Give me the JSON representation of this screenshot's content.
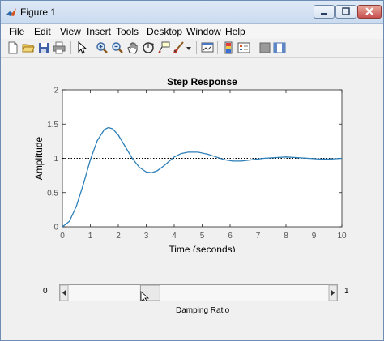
{
  "window": {
    "title": "Figure 1"
  },
  "menu": [
    "File",
    "Edit",
    "View",
    "Insert",
    "Tools",
    "Desktop",
    "Window",
    "Help"
  ],
  "toolbar_icons": [
    "new-figure-icon",
    "open-file-icon",
    "save-icon",
    "print-icon",
    "pointer-icon",
    "zoom-in-icon",
    "zoom-out-icon",
    "pan-hand-icon",
    "rotate-3d-icon",
    "data-cursor-icon",
    "brush-icon",
    "brush-dropdown-icon",
    "link-plot-icon",
    "colorbar-icon",
    "legend-icon",
    "hide-plot-tools-icon",
    "show-plot-tools-icon"
  ],
  "chart_data": {
    "type": "line",
    "title": "Step Response",
    "xlabel": "Time (seconds)",
    "ylabel": "Amplitude",
    "xlim": [
      0,
      10
    ],
    "ylim": [
      0,
      2
    ],
    "xticks": [
      "0",
      "1",
      "2",
      "3",
      "4",
      "5",
      "6",
      "7",
      "8",
      "9",
      "10"
    ],
    "yticks": [
      "0",
      "0.5",
      "1",
      "1.5",
      "2"
    ],
    "grid": false,
    "reference_line": {
      "y": 1,
      "style": "dotted"
    },
    "series": [
      {
        "color": "#2c7fb8",
        "x": [
          0,
          0.25,
          0.5,
          0.75,
          1.0,
          1.25,
          1.5,
          1.65,
          1.8,
          2.0,
          2.25,
          2.5,
          2.75,
          3.0,
          3.2,
          3.4,
          3.6,
          3.8,
          4.0,
          4.25,
          4.5,
          4.85,
          5.2,
          5.5,
          5.8,
          6.1,
          6.4,
          6.8,
          7.2,
          7.6,
          8.0,
          8.4,
          8.8,
          9.2,
          9.6,
          10.0
        ],
        "y": [
          0,
          0.08,
          0.3,
          0.62,
          0.98,
          1.26,
          1.42,
          1.45,
          1.43,
          1.34,
          1.17,
          1.0,
          0.87,
          0.8,
          0.79,
          0.82,
          0.88,
          0.95,
          1.02,
          1.07,
          1.09,
          1.09,
          1.06,
          1.02,
          0.98,
          0.96,
          0.96,
          0.98,
          1.0,
          1.01,
          1.02,
          1.01,
          1.0,
          0.99,
          0.99,
          1.0
        ]
      }
    ]
  },
  "slider": {
    "min_label": "0",
    "max_label": "1",
    "caption": "Damping Ratio",
    "value": 0.3
  }
}
